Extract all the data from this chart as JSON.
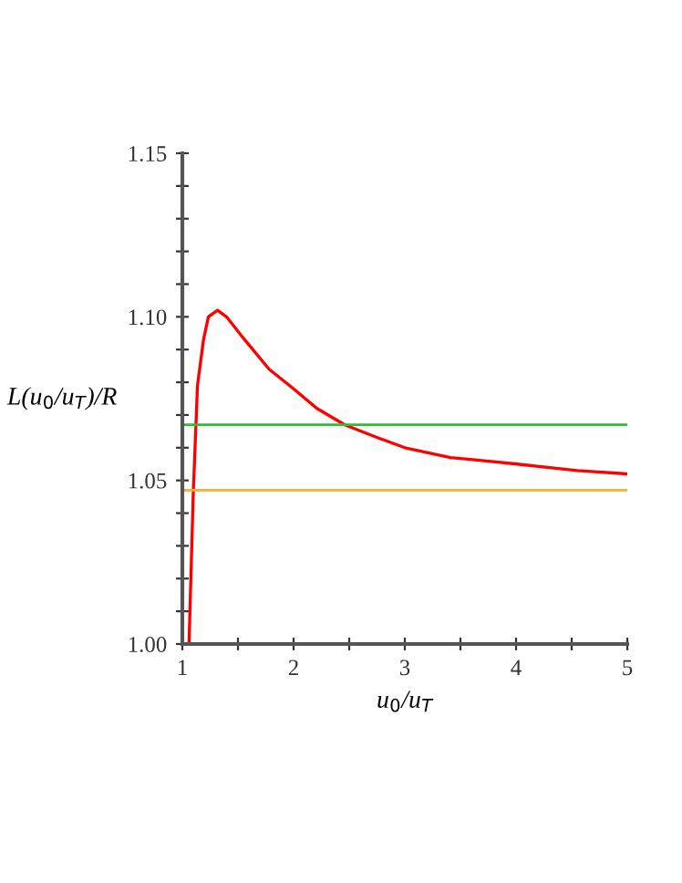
{
  "chart_data": {
    "type": "line",
    "xlabel": "u$_{0}$/u$_{T}$",
    "ylabel": "L(u$_{0}$/u$_{T}$)/R",
    "xlim": [
      1,
      5
    ],
    "ylim": [
      1.0,
      1.15
    ],
    "xticks": [
      1,
      {
        "value": 1.5,
        "label": null
      },
      2,
      {
        "value": 2.5,
        "label": null
      },
      3,
      {
        "value": 3.5,
        "label": null
      },
      4,
      {
        "value": 4.5,
        "label": null
      },
      5
    ],
    "yticks": [
      {
        "value": 1.0,
        "label": "1.00"
      },
      {
        "value": 1.01,
        "label": null
      },
      {
        "value": 1.02,
        "label": null
      },
      {
        "value": 1.03,
        "label": null
      },
      {
        "value": 1.04,
        "label": null
      },
      {
        "value": 1.05,
        "label": "1.05"
      },
      {
        "value": 1.06,
        "label": null
      },
      {
        "value": 1.07,
        "label": null
      },
      {
        "value": 1.08,
        "label": null
      },
      {
        "value": 1.09,
        "label": null
      },
      {
        "value": 1.1,
        "label": "1.10"
      },
      {
        "value": 1.11,
        "label": null
      },
      {
        "value": 1.12,
        "label": null
      },
      {
        "value": 1.13,
        "label": null
      },
      {
        "value": 1.14,
        "label": null
      },
      {
        "value": 1.15,
        "label": "1.15"
      }
    ],
    "grid": false,
    "legend": false,
    "marker": "none",
    "line_style": "solid",
    "series": [
      {
        "color": "#ff0000",
        "x": [
          1.06,
          1.098,
          1.136,
          1.19,
          1.234,
          1.316,
          1.397,
          1.56,
          1.78,
          2.0,
          2.21,
          2.46,
          2.76,
          3.0,
          3.41,
          4.01,
          4.55,
          5.0
        ],
        "values": [
          1.0,
          1.046,
          1.079,
          1.093,
          1.1,
          1.102,
          1.1,
          1.093,
          1.084,
          1.078,
          1.072,
          1.067,
          1.063,
          1.06,
          1.057,
          1.055,
          1.053,
          1.052
        ]
      }
    ],
    "ref_lines": [
      {
        "axis": "y",
        "value": 1.067,
        "color": "#33bb33",
        "line_style": "solid"
      },
      {
        "axis": "y",
        "value": 1.047,
        "color": "#f0b030",
        "line_style": "solid"
      }
    ]
  }
}
